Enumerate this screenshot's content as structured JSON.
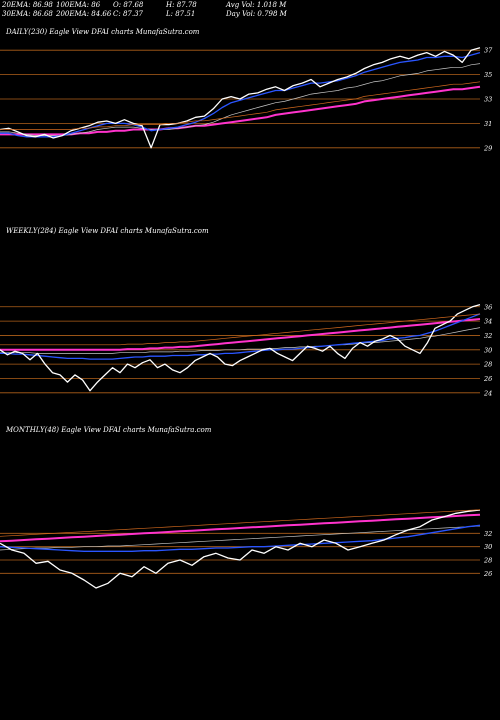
{
  "header": {
    "row1": [
      "20EMA: 86.98",
      "100EMA: 86",
      "O: 87.68",
      "H: 87.78",
      "Avg Vol: 1.018 M"
    ],
    "row2": [
      "30EMA: 86.68",
      "200EMA: 84.66",
      "C: 87.37",
      "L: 87.51",
      "Day Vol: 0.798 M"
    ]
  },
  "colors": {
    "background": "#000000",
    "price": "#ffffff",
    "grid": "#b0601a",
    "ema_fast": "#2a55ff",
    "ema_slow": "#ff33cc",
    "ema_mid": "#c8c8c8",
    "ema_long": "#d2691e"
  },
  "chart_data": [
    {
      "type": "line",
      "title": "DAILY(230) Eagle  View  DFAI charts MunafaSutra.com",
      "y_ticks": [
        "37",
        "35",
        "33",
        "31",
        "29"
      ],
      "ylim": [
        28,
        38
      ],
      "series": [
        {
          "values": [
            30.5,
            30.6,
            30.3,
            30.0,
            29.9,
            30.1,
            29.8,
            30.0,
            30.4,
            30.6,
            30.8,
            31.1,
            31.2,
            31.0,
            31.3,
            31.0,
            30.8,
            29.0,
            30.9,
            30.9,
            31.0,
            31.2,
            31.5,
            31.6,
            32.2,
            33.0,
            33.2,
            33.0,
            33.4,
            33.5,
            33.8,
            34.0,
            33.7,
            34.1,
            34.3,
            34.6,
            34.0,
            34.3,
            34.6,
            34.8,
            35.1,
            35.5,
            35.8,
            36.0,
            36.3,
            36.5,
            36.3,
            36.6,
            36.8,
            36.5,
            36.9,
            36.6,
            36.0,
            37.0,
            37.2
          ]
        },
        {
          "values": [
            30.2,
            30.2,
            30.0,
            29.9,
            29.9,
            29.9,
            29.9,
            30.0,
            30.2,
            30.4,
            30.6,
            30.8,
            31.0,
            31.0,
            31.0,
            30.9,
            30.7,
            30.4,
            30.5,
            30.6,
            30.7,
            30.9,
            31.1,
            31.4,
            31.8,
            32.3,
            32.7,
            32.9,
            33.1,
            33.3,
            33.5,
            33.7,
            33.7,
            33.9,
            34.1,
            34.3,
            34.3,
            34.4,
            34.5,
            34.7,
            34.9,
            35.2,
            35.4,
            35.6,
            35.8,
            36.0,
            36.1,
            36.2,
            36.4,
            36.4,
            36.5,
            36.5,
            36.4,
            36.6,
            36.8
          ]
        },
        {
          "values": [
            30.3,
            30.3,
            30.2,
            30.1,
            30.0,
            30.0,
            30.0,
            30.0,
            30.1,
            30.2,
            30.3,
            30.5,
            30.6,
            30.7,
            30.7,
            30.7,
            30.6,
            30.5,
            30.5,
            30.5,
            30.6,
            30.7,
            30.8,
            30.9,
            31.1,
            31.4,
            31.7,
            31.9,
            32.1,
            32.3,
            32.5,
            32.7,
            32.8,
            33.0,
            33.2,
            33.4,
            33.5,
            33.6,
            33.7,
            33.9,
            34.0,
            34.2,
            34.4,
            34.5,
            34.7,
            34.9,
            35.0,
            35.1,
            35.3,
            35.4,
            35.5,
            35.6,
            35.6,
            35.8,
            35.9
          ]
        },
        {
          "values": [
            30.1,
            30.1,
            30.1,
            30.1,
            30.1,
            30.1,
            30.1,
            30.1,
            30.1,
            30.2,
            30.2,
            30.3,
            30.3,
            30.4,
            30.4,
            30.5,
            30.5,
            30.5,
            30.5,
            30.6,
            30.6,
            30.7,
            30.8,
            30.8,
            30.9,
            31.0,
            31.1,
            31.2,
            31.3,
            31.4,
            31.5,
            31.7,
            31.8,
            31.9,
            32.0,
            32.1,
            32.2,
            32.3,
            32.4,
            32.5,
            32.6,
            32.8,
            32.9,
            33.0,
            33.1,
            33.2,
            33.3,
            33.4,
            33.5,
            33.6,
            33.7,
            33.8,
            33.8,
            33.9,
            34.0
          ]
        }
      ]
    },
    {
      "type": "line",
      "title": "WEEKLY(284) Eagle  View  DFAI charts MunafaSutra.com",
      "y_ticks": [
        "36",
        "34",
        "32",
        "30",
        "28",
        "26",
        "24"
      ],
      "ylim": [
        23,
        37.5
      ],
      "series": [
        {
          "values": [
            30.0,
            29.3,
            29.8,
            29.5,
            28.6,
            29.5,
            28.0,
            26.8,
            26.5,
            25.5,
            26.5,
            25.8,
            24.3,
            25.5,
            26.5,
            27.5,
            26.8,
            28.0,
            27.5,
            28.2,
            28.6,
            27.5,
            28.0,
            27.2,
            26.8,
            27.5,
            28.5,
            29.0,
            29.5,
            29.0,
            28.0,
            27.8,
            28.5,
            29.0,
            29.5,
            30.0,
            30.2,
            29.5,
            29.0,
            28.5,
            29.5,
            30.5,
            30.2,
            29.8,
            30.5,
            29.5,
            28.8,
            30.2,
            31.0,
            30.5,
            31.2,
            31.5,
            32.0,
            31.5,
            30.5,
            30.0,
            29.5,
            31.0,
            33.0,
            33.5,
            34.0,
            35.0,
            35.5,
            36.0,
            36.3
          ]
        },
        {
          "values": [
            29.5,
            29.5,
            29.4,
            29.4,
            29.3,
            29.2,
            29.1,
            29.0,
            28.9,
            28.8,
            28.8,
            28.8,
            28.7,
            28.7,
            28.7,
            28.7,
            28.8,
            28.9,
            29.0,
            29.0,
            29.1,
            29.1,
            29.1,
            29.2,
            29.2,
            29.2,
            29.3,
            29.3,
            29.4,
            29.4,
            29.5,
            29.5,
            29.6,
            29.7,
            29.8,
            29.9,
            30.0,
            30.0,
            30.1,
            30.1,
            30.2,
            30.3,
            30.4,
            30.5,
            30.6,
            30.7,
            30.8,
            30.9,
            31.0,
            31.1,
            31.2,
            31.3,
            31.5,
            31.6,
            31.7,
            31.9,
            32.0,
            32.3,
            32.6,
            33.0,
            33.4,
            33.8,
            34.2,
            34.6,
            35.0
          ]
        },
        {
          "values": [
            29.6,
            29.6,
            29.6,
            29.6,
            29.6,
            29.5,
            29.5,
            29.5,
            29.5,
            29.5,
            29.5,
            29.5,
            29.5,
            29.5,
            29.5,
            29.5,
            29.6,
            29.6,
            29.6,
            29.6,
            29.7,
            29.7,
            29.7,
            29.7,
            29.8,
            29.8,
            29.8,
            29.9,
            29.9,
            29.9,
            30.0,
            30.0,
            30.0,
            30.1,
            30.1,
            30.1,
            30.2,
            30.2,
            30.3,
            30.3,
            30.4,
            30.4,
            30.5,
            30.5,
            30.6,
            30.7,
            30.7,
            30.8,
            30.9,
            31.0,
            31.0,
            31.1,
            31.2,
            31.3,
            31.4,
            31.5,
            31.6,
            31.8,
            31.9,
            32.1,
            32.3,
            32.5,
            32.7,
            32.9,
            33.1
          ]
        },
        {
          "values": [
            30.0,
            30.0,
            30.0,
            30.0,
            30.0,
            30.0,
            30.0,
            30.0,
            30.0,
            30.0,
            30.0,
            30.0,
            30.0,
            30.0,
            30.0,
            30.0,
            30.0,
            30.1,
            30.1,
            30.1,
            30.2,
            30.2,
            30.3,
            30.3,
            30.4,
            30.4,
            30.5,
            30.6,
            30.7,
            30.8,
            30.9,
            31.0,
            31.1,
            31.2,
            31.3,
            31.4,
            31.5,
            31.6,
            31.7,
            31.8,
            31.9,
            32.0,
            32.1,
            32.2,
            32.3,
            32.4,
            32.5,
            32.6,
            32.7,
            32.8,
            32.9,
            33.0,
            33.1,
            33.2,
            33.3,
            33.4,
            33.5,
            33.6,
            33.7,
            33.8,
            33.9,
            34.0,
            34.1,
            34.2,
            34.3
          ]
        }
      ]
    },
    {
      "type": "line",
      "title": "MONTHLY(48) Eagle  View  DFAI charts MunafaSutra.com",
      "y_ticks": [
        "32",
        "30",
        "28",
        "26"
      ],
      "ylim": [
        22,
        37
      ],
      "series": [
        {
          "values": [
            30.5,
            29.5,
            29.0,
            27.5,
            27.8,
            26.5,
            26.0,
            25.0,
            23.8,
            24.5,
            26.0,
            25.5,
            27.0,
            26.0,
            27.5,
            28.0,
            27.2,
            28.5,
            29.0,
            28.3,
            28.0,
            29.5,
            29.0,
            30.0,
            29.5,
            30.5,
            30.0,
            31.0,
            30.5,
            29.5,
            30.0,
            30.5,
            31.0,
            31.8,
            32.5,
            33.0,
            34.0,
            34.5,
            35.0,
            35.3,
            35.5
          ]
        },
        {
          "values": [
            30.0,
            29.9,
            29.8,
            29.7,
            29.6,
            29.5,
            29.4,
            29.3,
            29.3,
            29.3,
            29.3,
            29.3,
            29.4,
            29.4,
            29.5,
            29.6,
            29.6,
            29.7,
            29.8,
            29.8,
            29.9,
            30.0,
            30.0,
            30.1,
            30.2,
            30.3,
            30.4,
            30.5,
            30.6,
            30.7,
            30.8,
            30.9,
            31.1,
            31.3,
            31.5,
            31.8,
            32.1,
            32.4,
            32.7,
            33.0,
            33.2
          ]
        },
        {
          "values": [
            29.5,
            29.6,
            29.7,
            29.8,
            29.8,
            29.9,
            29.9,
            30.0,
            30.0,
            30.1,
            30.1,
            30.2,
            30.3,
            30.4,
            30.5,
            30.6,
            30.7,
            30.8,
            30.9,
            31.0,
            31.1,
            31.2,
            31.3,
            31.4,
            31.5,
            31.6,
            31.7,
            31.8,
            31.9,
            32.0,
            32.1,
            32.2,
            32.3,
            32.4,
            32.5,
            32.6,
            32.7,
            32.8,
            32.9,
            33.0,
            33.1
          ]
        },
        {
          "values": [
            30.8,
            30.9,
            31.0,
            31.1,
            31.2,
            31.3,
            31.4,
            31.5,
            31.6,
            31.7,
            31.8,
            31.9,
            32.0,
            32.1,
            32.2,
            32.3,
            32.4,
            32.5,
            32.6,
            32.7,
            32.8,
            32.9,
            33.0,
            33.1,
            33.2,
            33.3,
            33.4,
            33.5,
            33.6,
            33.7,
            33.8,
            33.9,
            34.0,
            34.1,
            34.2,
            34.3,
            34.4,
            34.5,
            34.6,
            34.7,
            34.8
          ]
        }
      ]
    }
  ]
}
